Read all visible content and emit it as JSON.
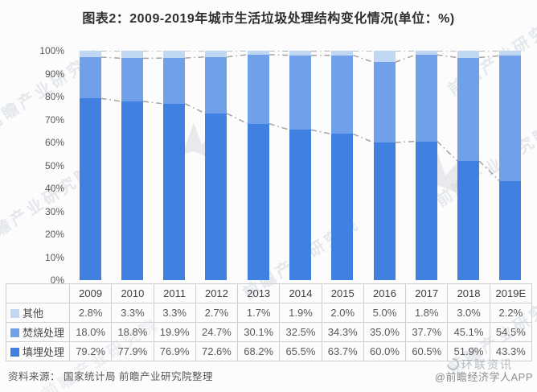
{
  "title": "图表2：2009-2019年城市生活垃圾处理结构变化情况(单位：%)",
  "chart_data": {
    "type": "bar",
    "stacked": true,
    "title": "图表2：2009-2019年城市生活垃圾处理结构变化情况(单位：%)",
    "unit": "%",
    "categories": [
      "2009",
      "2010",
      "2011",
      "2012",
      "2013",
      "2014",
      "2015",
      "2016",
      "2017",
      "2018",
      "2019E"
    ],
    "series": [
      {
        "name": "填埋处理",
        "color": "#3f80e0",
        "values": [
          79.2,
          77.9,
          76.9,
          72.6,
          68.2,
          65.5,
          63.7,
          60.0,
          60.5,
          51.9,
          43.3
        ]
      },
      {
        "name": "焚烧处理",
        "color": "#71a0ea",
        "values": [
          18.0,
          18.8,
          19.9,
          24.7,
          30.1,
          32.5,
          34.3,
          35.0,
          37.7,
          45.1,
          54.5
        ]
      },
      {
        "name": "其他",
        "color": "#c0d7f4",
        "values": [
          2.8,
          3.3,
          3.3,
          2.7,
          1.7,
          1.9,
          2.0,
          5.0,
          1.8,
          3.0,
          2.2
        ]
      }
    ],
    "table_display_order": [
      "其他",
      "焚烧处理",
      "填埋处理"
    ],
    "ylim": [
      0,
      100
    ],
    "ytick_labels": [
      "0%",
      "10%",
      "20%",
      "30%",
      "40%",
      "50%",
      "60%",
      "70%",
      "80%",
      "90%",
      "100%"
    ],
    "grid": false,
    "legend_position": "table-left",
    "connector_line_color": "#a3a3a3",
    "value_suffix": "%"
  },
  "source_note": "资料来源：  国家统计局 前瞻产业研究院整理",
  "watermark": {
    "text": "前瞻产业研究院",
    "brand_overlay": "环联资讯",
    "credit": "@前瞻经济学人APP"
  }
}
